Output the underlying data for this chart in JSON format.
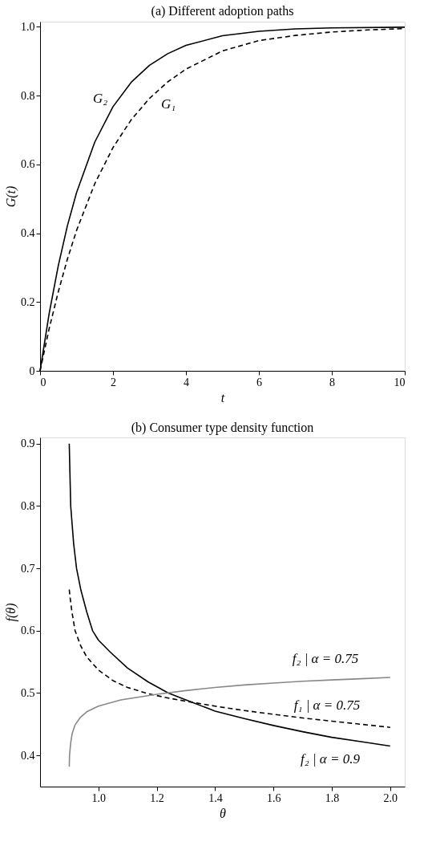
{
  "chart_data": [
    {
      "type": "line",
      "title": "(a) Different adoption paths",
      "xlabel": "t",
      "ylabel": "G(t)",
      "xlim": [
        0,
        10
      ],
      "ylim": [
        0,
        1.015
      ],
      "xticks": [
        0,
        2,
        4,
        6,
        8,
        10
      ],
      "yticks": [
        0,
        0.2,
        0.4,
        0.6,
        0.8,
        {
          "value": 1.0,
          "label": "1.0"
        }
      ],
      "grid": false,
      "marker": "none",
      "series": [
        {
          "color": "#000000",
          "line_style": "solid",
          "x": [
            0,
            0.25,
            0.5,
            0.75,
            1,
            1.5,
            2,
            2.5,
            3,
            3.5,
            4,
            5,
            6,
            7,
            8,
            10
          ],
          "values": [
            0,
            0.167,
            0.306,
            0.422,
            0.518,
            0.665,
            0.768,
            0.839,
            0.888,
            0.922,
            0.946,
            0.974,
            0.987,
            0.994,
            0.997,
            0.999
          ]
        },
        {
          "color": "#000000",
          "line_style": "dashed",
          "x": [
            0,
            0.25,
            0.5,
            0.75,
            1,
            1.5,
            2,
            2.5,
            3,
            3.5,
            4,
            5,
            6,
            7,
            8,
            9,
            10
          ],
          "values": [
            0,
            0.123,
            0.23,
            0.325,
            0.408,
            0.544,
            0.649,
            0.73,
            0.792,
            0.84,
            0.877,
            0.93,
            0.96,
            0.975,
            0.985,
            0.991,
            0.995
          ]
        }
      ],
      "annotations": [
        "G₂",
        "G₁"
      ]
    },
    {
      "type": "line",
      "title": "(b) Consumer type density function",
      "xlabel": "θ",
      "ylabel": "f(θ)",
      "xlim": [
        0.8,
        2.05
      ],
      "ylim": [
        0.35,
        0.91
      ],
      "xticks": [
        {
          "value": 1.0,
          "label": "1.0"
        },
        1.2,
        1.4,
        1.6,
        1.8,
        {
          "value": 2.0,
          "label": "2.0"
        }
      ],
      "yticks": [
        0.4,
        0.5,
        0.6,
        0.7,
        0.8,
        0.9
      ],
      "grid": false,
      "marker": "none",
      "series": [
        {
          "color": "#000000",
          "line_style": "solid",
          "x": [
            0.9,
            0.905,
            0.915,
            0.925,
            0.94,
            0.96,
            0.98,
            1.0,
            1.04,
            1.1,
            1.17,
            1.24,
            1.3,
            1.4,
            1.5,
            1.6,
            1.7,
            1.8,
            1.9,
            2.0
          ],
          "values": [
            0.9,
            0.8,
            0.74,
            0.7,
            0.665,
            0.63,
            0.6,
            0.585,
            0.566,
            0.54,
            0.518,
            0.5,
            0.489,
            0.471,
            0.459,
            0.448,
            0.438,
            0.429,
            0.422,
            0.415
          ]
        },
        {
          "color": "#000000",
          "line_style": "dashed",
          "x": [
            0.9,
            0.905,
            0.91,
            0.92,
            0.94,
            0.96,
            1.0,
            1.05,
            1.1,
            1.17,
            1.24,
            1.3,
            1.4,
            1.5,
            1.6,
            1.7,
            1.8,
            1.9,
            2.0
          ],
          "values": [
            0.666,
            0.645,
            0.628,
            0.6,
            0.575,
            0.558,
            0.537,
            0.52,
            0.509,
            0.499,
            0.492,
            0.487,
            0.479,
            0.472,
            0.466,
            0.46,
            0.455,
            0.45,
            0.445
          ]
        },
        {
          "color": "#888888",
          "line_style": "solid",
          "x": [
            0.9,
            0.901,
            0.905,
            0.91,
            0.92,
            0.938,
            0.96,
            1.0,
            1.077,
            1.2,
            1.3,
            1.4,
            1.5,
            1.6,
            1.7,
            1.8,
            1.9,
            2.0
          ],
          "values": [
            0.382,
            0.4,
            0.42,
            0.435,
            0.449,
            0.461,
            0.47,
            0.479,
            0.489,
            0.498,
            0.504,
            0.509,
            0.513,
            0.516,
            0.519,
            0.521,
            0.523,
            0.525
          ]
        }
      ],
      "annotations": [
        "f₂ | α = 0.75",
        "f₁ | α = 0.75",
        "f₂ | α = 0.9"
      ]
    }
  ]
}
